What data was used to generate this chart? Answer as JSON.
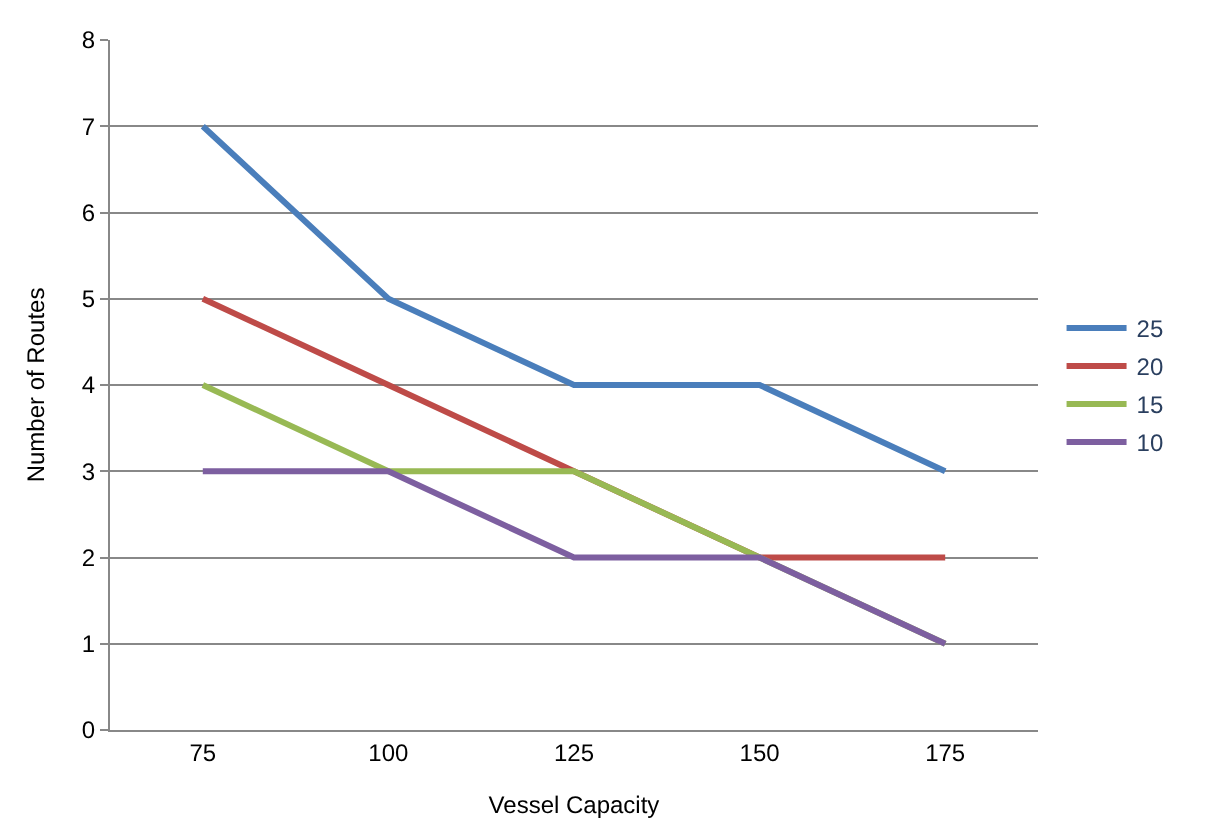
{
  "chart_data": {
    "type": "line",
    "xlabel": "Vessel Capacity",
    "ylabel": "Number of Routes",
    "categories": [
      "75",
      "100",
      "125",
      "150",
      "175"
    ],
    "series": [
      {
        "name": "25",
        "color": "#4a7ebb",
        "values": [
          7,
          5,
          4,
          4,
          3
        ]
      },
      {
        "name": "20",
        "color": "#be4b48",
        "values": [
          5,
          4,
          3,
          2,
          2
        ]
      },
      {
        "name": "15",
        "color": "#98b954",
        "values": [
          4,
          3,
          3,
          2,
          1
        ]
      },
      {
        "name": "10",
        "color": "#7d5fa0",
        "values": [
          3,
          3,
          2,
          2,
          1
        ]
      }
    ],
    "ylim": [
      0,
      8
    ],
    "yticks": [
      0,
      1,
      2,
      3,
      4,
      5,
      6,
      7,
      8
    ],
    "grid": "y",
    "legend": "right",
    "marker": "none",
    "line_style": "solid"
  }
}
